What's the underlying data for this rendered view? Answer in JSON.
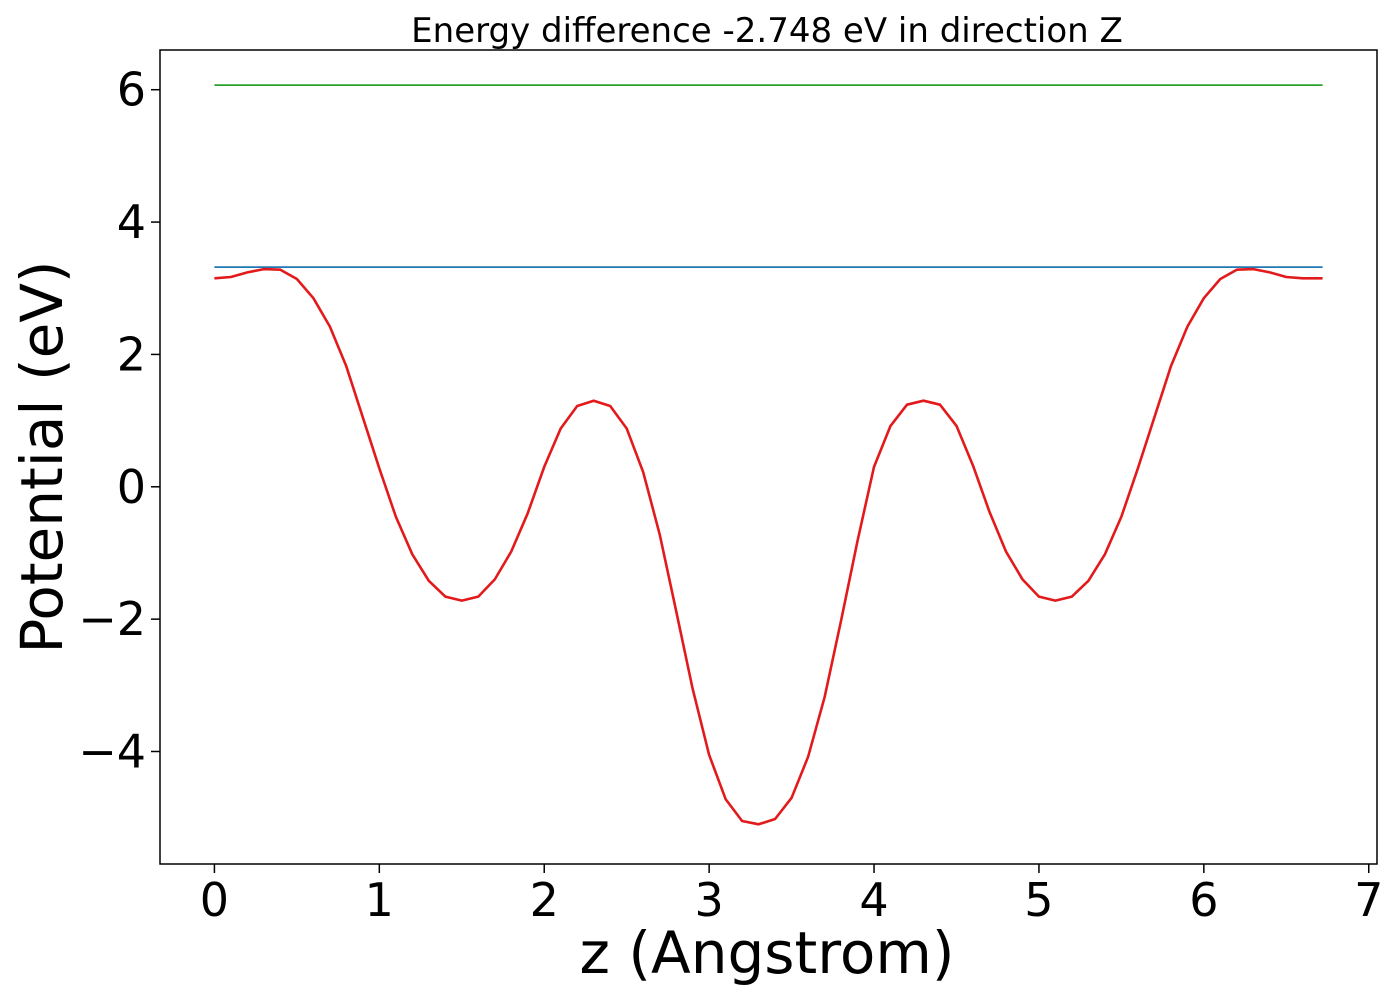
{
  "chart_data": {
    "type": "line",
    "title": "Energy difference -2.748 eV in direction Z",
    "xlabel": "z (Angstrom)",
    "ylabel": "Potential (eV)",
    "xlim": [
      -0.33,
      7.05
    ],
    "ylim": [
      -5.7,
      6.6
    ],
    "grid": false,
    "legend": "none",
    "x_ticks": [
      0,
      1,
      2,
      3,
      4,
      5,
      6,
      7
    ],
    "x_tick_labels": [
      "0",
      "1",
      "2",
      "3",
      "4",
      "5",
      "6",
      "7"
    ],
    "y_ticks": [
      -4,
      -2,
      0,
      2,
      4,
      6
    ],
    "y_tick_labels": [
      "−4",
      "−2",
      "0",
      "2",
      "4",
      "6"
    ],
    "series": [
      {
        "color": "#2ca02c",
        "x": [
          0,
          6.72
        ],
        "y": [
          6.07,
          6.07
        ]
      },
      {
        "color": "#1f77b4",
        "x": [
          0,
          6.72
        ],
        "y": [
          3.32,
          3.32
        ]
      },
      {
        "color": "#e31a1c",
        "x": [
          0,
          0.1,
          0.2,
          0.3,
          0.4,
          0.5,
          0.6,
          0.7,
          0.8,
          0.9,
          1.0,
          1.1,
          1.2,
          1.3,
          1.4,
          1.5,
          1.6,
          1.7,
          1.8,
          1.9,
          2.0,
          2.1,
          2.2,
          2.3,
          2.4,
          2.5,
          2.6,
          2.7,
          2.8,
          2.9,
          3.0,
          3.1,
          3.2,
          3.3,
          3.4,
          3.5,
          3.6,
          3.7,
          3.8,
          3.9,
          4.0,
          4.1,
          4.2,
          4.3,
          4.4,
          4.5,
          4.6,
          4.7,
          4.8,
          4.9,
          5.0,
          5.1,
          5.2,
          5.3,
          5.4,
          5.5,
          5.6,
          5.7,
          5.8,
          5.9,
          6.0,
          6.1,
          6.2,
          6.3,
          6.4,
          6.5,
          6.6,
          6.72
        ],
        "y": [
          3.15,
          3.17,
          3.24,
          3.29,
          3.28,
          3.14,
          2.85,
          2.42,
          1.82,
          1.05,
          0.28,
          -0.45,
          -1.02,
          -1.42,
          -1.66,
          -1.72,
          -1.66,
          -1.4,
          -0.98,
          -0.4,
          0.3,
          0.88,
          1.22,
          1.3,
          1.22,
          0.88,
          0.22,
          -0.72,
          -1.88,
          -3.05,
          -4.05,
          -4.72,
          -5.05,
          -5.1,
          -5.02,
          -4.7,
          -4.08,
          -3.18,
          -2.02,
          -0.82,
          0.3,
          0.92,
          1.24,
          1.3,
          1.24,
          0.92,
          0.32,
          -0.38,
          -0.98,
          -1.4,
          -1.66,
          -1.72,
          -1.66,
          -1.42,
          -1.02,
          -0.45,
          0.28,
          1.05,
          1.82,
          2.42,
          2.85,
          3.14,
          3.28,
          3.29,
          3.24,
          3.17,
          3.15,
          3.15
        ]
      }
    ]
  }
}
